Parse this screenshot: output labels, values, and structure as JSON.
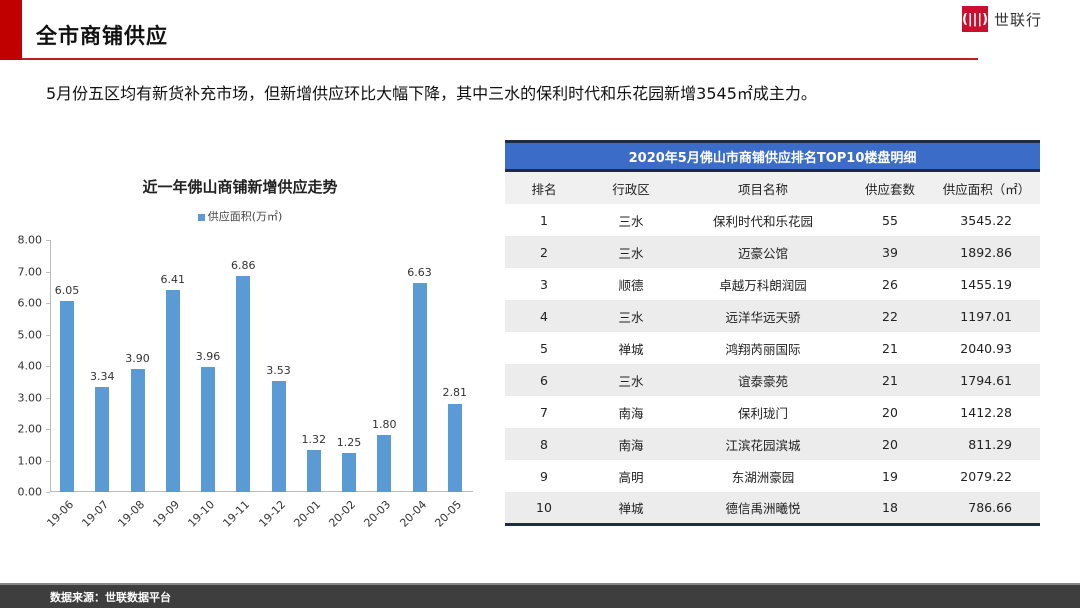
{
  "header": {
    "title": "全市商铺供应",
    "logo_mark": "(|||)",
    "logo_text": "世联行"
  },
  "summary": "5月份五区均有新货补充市场，但新增供应环比大幅下降，其中三水的保利时代和乐花园新增3545㎡成主力。",
  "chart_data": {
    "type": "bar",
    "title": "近一年佛山商铺新增供应走势",
    "legend": [
      "供应面积(万㎡)"
    ],
    "categories": [
      "19-06",
      "19-07",
      "19-08",
      "19-09",
      "19-10",
      "19-11",
      "19-12",
      "20-01",
      "20-02",
      "20-03",
      "20-04",
      "20-05"
    ],
    "values": [
      6.05,
      3.34,
      3.9,
      6.41,
      3.96,
      6.86,
      3.53,
      1.32,
      1.25,
      1.8,
      6.63,
      2.81
    ],
    "value_labels": [
      "6.05",
      "3.34",
      "3.90",
      "6.41",
      "3.96",
      "6.86",
      "3.53",
      "1.32",
      "1.25",
      "1.80",
      "6.63",
      "2.81"
    ],
    "xlabel": "",
    "ylabel": "",
    "ylim": [
      0,
      8
    ],
    "yticks": [
      "8.00",
      "7.00",
      "6.00",
      "5.00",
      "4.00",
      "3.00",
      "2.00",
      "1.00",
      "0.00"
    ],
    "grid": false,
    "legend_position": "top",
    "bar_color": "#5b9bd5"
  },
  "table": {
    "title": "2020年5月佛山市商铺供应排名TOP10楼盘明细",
    "columns": [
      "排名",
      "行政区",
      "项目名称",
      "供应套数",
      "供应面积（㎡）"
    ],
    "rows": [
      [
        "1",
        "三水",
        "保利时代和乐花园",
        "55",
        "3545.22"
      ],
      [
        "2",
        "三水",
        "迈豪公馆",
        "39",
        "1892.86"
      ],
      [
        "3",
        "顺德",
        "卓越万科朗润园",
        "26",
        "1455.19"
      ],
      [
        "4",
        "三水",
        "远洋华远天骄",
        "22",
        "1197.01"
      ],
      [
        "5",
        "禅城",
        "鸿翔芮丽国际",
        "21",
        "2040.93"
      ],
      [
        "6",
        "三水",
        "谊泰豪苑",
        "21",
        "1794.61"
      ],
      [
        "7",
        "南海",
        "保利珑门",
        "20",
        "1412.28"
      ],
      [
        "8",
        "南海",
        "江滨花园滨城",
        "20",
        "811.29"
      ],
      [
        "9",
        "高明",
        "东湖洲豪园",
        "19",
        "2079.22"
      ],
      [
        "10",
        "禅城",
        "德信禹洲曦悦",
        "18",
        "786.66"
      ]
    ],
    "header_color": "#3b6cc8"
  },
  "footer": {
    "source": "数据来源：世联数据平台"
  }
}
